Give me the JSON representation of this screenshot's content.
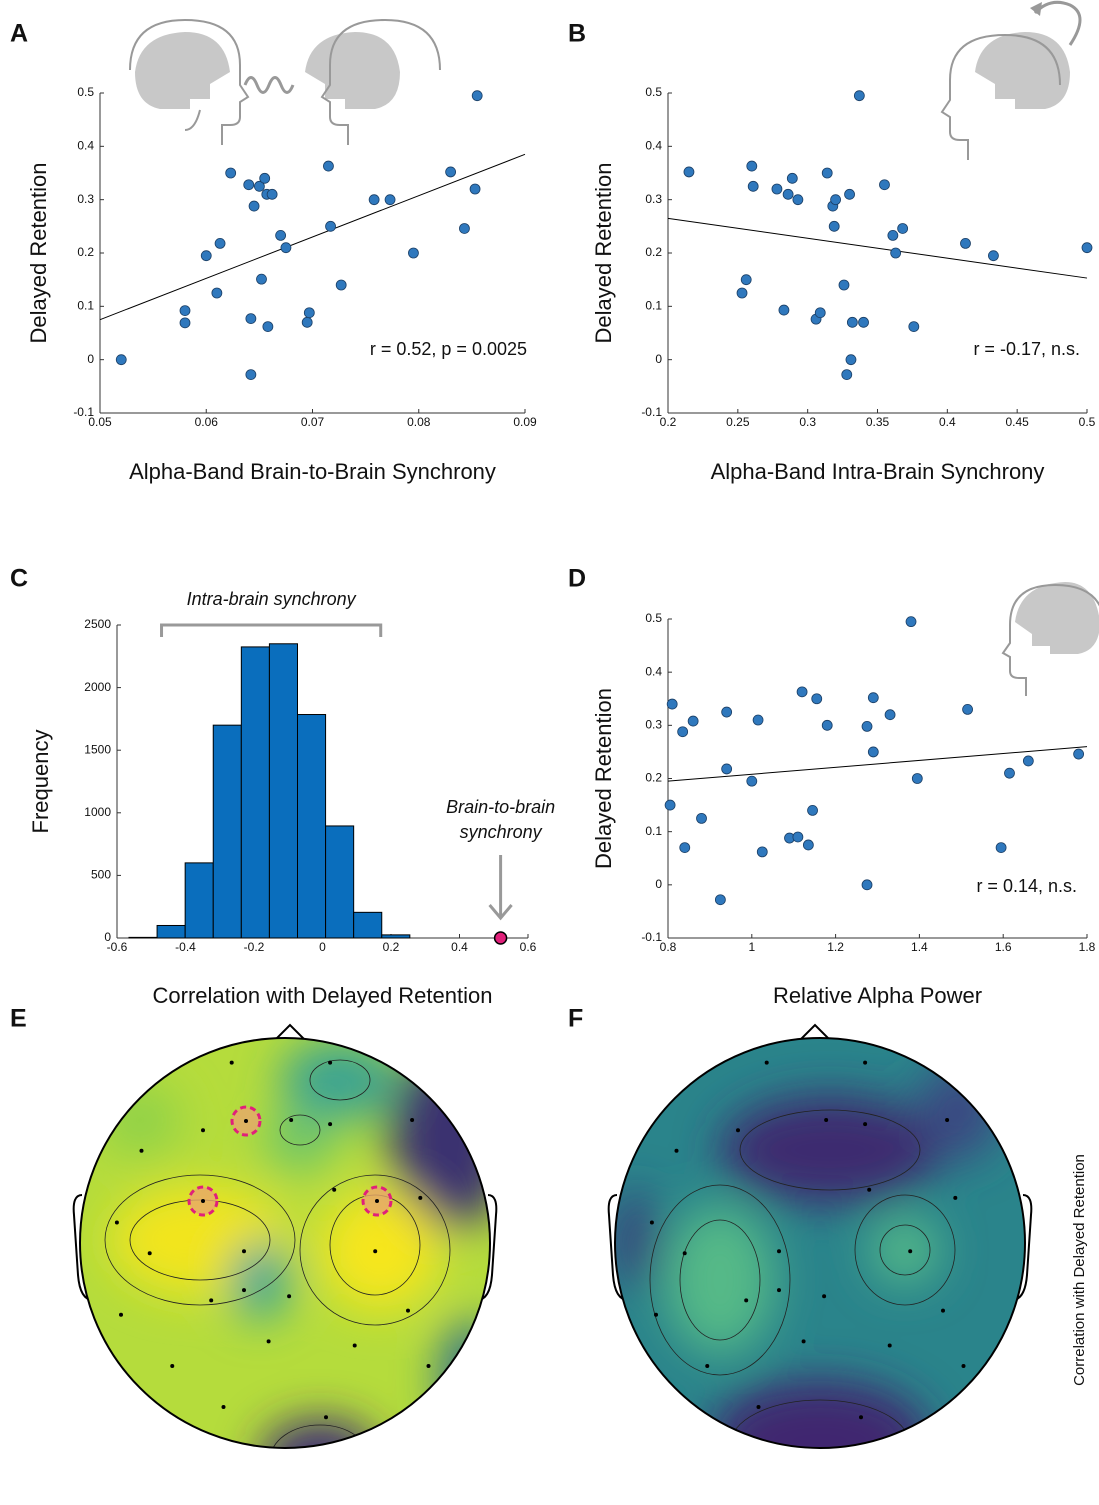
{
  "chart_data": [
    {
      "type": "scatter",
      "panel": "A",
      "xlabel": "Alpha-Band Brain-to-Brain Synchrony",
      "ylabel": "Delayed Retention",
      "annotation": "r = 0.52, p = 0.0025",
      "color": "#2f78bd",
      "x": [
        0.052,
        0.058,
        0.058,
        0.06,
        0.061,
        0.0613,
        0.0623,
        0.064,
        0.0642,
        0.0642,
        0.0645,
        0.065,
        0.0652,
        0.0655,
        0.0657,
        0.0658,
        0.0662,
        0.067,
        0.0675,
        0.0695,
        0.0697,
        0.0715,
        0.0717,
        0.0727,
        0.0758,
        0.0773,
        0.0795,
        0.083,
        0.0843,
        0.0853,
        0.0855
      ],
      "values": [
        0.0,
        0.092,
        0.069,
        0.195,
        0.125,
        0.218,
        0.35,
        0.328,
        0.077,
        -0.028,
        0.288,
        0.325,
        0.151,
        0.34,
        0.31,
        0.062,
        0.31,
        0.233,
        0.21,
        0.07,
        0.088,
        0.363,
        0.25,
        0.14,
        0.3,
        0.3,
        0.2,
        0.352,
        0.246,
        0.32,
        0.495
      ],
      "fit": {
        "x": [
          0.05,
          0.09
        ],
        "values": [
          0.075,
          0.385
        ]
      },
      "xlim": [
        0.05,
        0.09
      ],
      "xticks": [
        0.05,
        0.06,
        0.07,
        0.08,
        0.09
      ],
      "ylim": [
        -0.1,
        0.5
      ],
      "yticks": [
        -0.1,
        0,
        0.1,
        0.2,
        0.3,
        0.4,
        0.5
      ]
    },
    {
      "type": "scatter",
      "panel": "B",
      "xlabel": "Alpha-Band Intra-Brain Synchrony",
      "ylabel": "Delayed Retention",
      "annotation": "r = -0.17, n.s.",
      "color": "#2f78bd",
      "x": [
        0.215,
        0.253,
        0.256,
        0.26,
        0.261,
        0.278,
        0.283,
        0.286,
        0.289,
        0.293,
        0.306,
        0.309,
        0.314,
        0.318,
        0.319,
        0.32,
        0.326,
        0.328,
        0.33,
        0.331,
        0.332,
        0.337,
        0.34,
        0.355,
        0.361,
        0.363,
        0.368,
        0.376,
        0.413,
        0.433,
        0.5
      ],
      "values": [
        0.352,
        0.125,
        0.15,
        0.363,
        0.325,
        0.32,
        0.093,
        0.31,
        0.34,
        0.3,
        0.076,
        0.088,
        0.35,
        0.288,
        0.25,
        0.3,
        0.14,
        -0.028,
        0.31,
        0.0,
        0.07,
        0.495,
        0.07,
        0.328,
        0.233,
        0.2,
        0.246,
        0.062,
        0.218,
        0.195,
        0.21
      ],
      "fit": {
        "x": [
          0.2,
          0.5
        ],
        "values": [
          0.265,
          0.153
        ]
      },
      "xlim": [
        0.2,
        0.5
      ],
      "xticks": [
        0.2,
        0.25,
        0.3,
        0.35,
        0.4,
        0.45,
        0.5
      ],
      "ylim": [
        -0.1,
        0.5
      ],
      "yticks": [
        -0.1,
        0,
        0.1,
        0.2,
        0.3,
        0.4,
        0.5
      ]
    },
    {
      "type": "histogram",
      "panel": "C",
      "xlabel": "Correlation with Delayed Retention",
      "ylabel": "Frequency",
      "color": "#0a6ebd",
      "bins": [
        -0.565,
        -0.483,
        -0.401,
        -0.319,
        -0.237,
        -0.155,
        -0.073,
        0.009,
        0.091,
        0.173,
        0.255
      ],
      "values": [
        5,
        100,
        600,
        1700,
        2325,
        2350,
        1785,
        895,
        205,
        25
      ],
      "bracket": {
        "label": "Intra-brain synchrony",
        "range": [
          -0.47,
          0.17
        ]
      },
      "highlight": {
        "label": [
          "Brain-to-brain",
          "synchrony"
        ],
        "x": 0.52,
        "y": 0,
        "color": "#e0207a"
      },
      "xlim": [
        -0.6,
        0.6
      ],
      "xticks": [
        -0.6,
        -0.4,
        -0.2,
        0,
        0.2,
        0.4,
        0.6
      ],
      "ylim": [
        0,
        2500
      ],
      "yticks": [
        0,
        500,
        1000,
        1500,
        2000,
        2500
      ]
    },
    {
      "type": "scatter",
      "panel": "D",
      "xlabel": "Relative Alpha Power",
      "ylabel": "Delayed Retention",
      "annotation": "r = 0.14, n.s.",
      "color": "#2f78bd",
      "x": [
        0.805,
        0.81,
        0.835,
        0.84,
        0.86,
        0.88,
        0.925,
        0.94,
        0.94,
        1.0,
        1.015,
        1.025,
        1.09,
        1.11,
        1.12,
        1.135,
        1.145,
        1.155,
        1.18,
        1.275,
        1.275,
        1.29,
        1.29,
        1.33,
        1.38,
        1.395,
        1.515,
        1.595,
        1.615,
        1.66,
        1.78
      ],
      "values": [
        0.15,
        0.34,
        0.288,
        0.07,
        0.308,
        0.125,
        -0.028,
        0.325,
        0.218,
        0.195,
        0.31,
        0.062,
        0.088,
        0.09,
        0.363,
        0.075,
        0.14,
        0.35,
        0.3,
        0.0,
        0.298,
        0.25,
        0.352,
        0.32,
        0.495,
        0.2,
        0.33,
        0.07,
        0.21,
        0.233,
        0.246
      ],
      "fit": {
        "x": [
          0.8,
          1.8
        ],
        "values": [
          0.195,
          0.26
        ]
      },
      "xlim": [
        0.8,
        1.8
      ],
      "xticks": [
        0.8,
        1,
        1.2,
        1.4,
        1.6,
        1.8
      ],
      "ylim": [
        -0.1,
        0.5
      ],
      "yticks": [
        -0.1,
        0,
        0.1,
        0.2,
        0.3,
        0.4,
        0.5
      ]
    },
    {
      "type": "topoplot",
      "panel": "E"
    },
    {
      "type": "topoplot",
      "panel": "F",
      "colorbar_label": "Correlation with Delayed Retention"
    }
  ]
}
